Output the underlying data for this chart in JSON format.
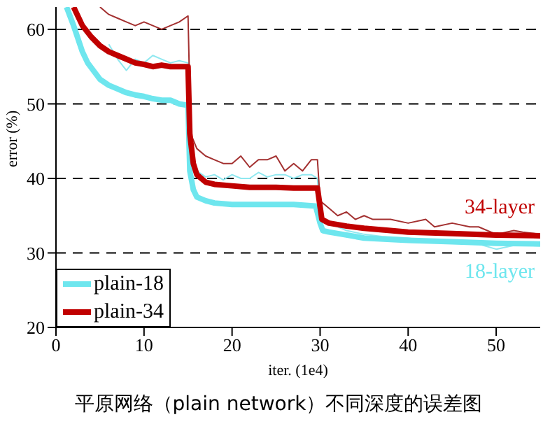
{
  "chart_data": {
    "type": "line",
    "title": "平原网络（plain network）不同深度的误差图",
    "xlabel": "iter. (1e4)",
    "ylabel": "error (%)",
    "xlim": [
      0,
      55
    ],
    "ylim": [
      20,
      63
    ],
    "xticks": [
      0,
      10,
      20,
      30,
      40,
      50
    ],
    "yticks": [
      20,
      30,
      40,
      50,
      60
    ],
    "grid": "y",
    "legend": "bottom left",
    "line_style": "solid",
    "marker": "none",
    "annotations": [
      "34-layer",
      "18-layer"
    ],
    "series": [
      {
        "color": "#8fe8f0",
        "x": [
          6,
          7,
          8,
          9,
          10,
          11,
          12,
          13,
          14,
          15,
          15.3,
          16,
          17,
          18,
          19,
          20,
          21,
          22,
          23,
          24,
          25,
          26,
          27,
          28,
          29,
          29.7,
          30,
          31,
          33,
          35,
          37,
          40,
          42,
          45,
          48,
          50,
          52,
          55
        ],
        "values": [
          58,
          56,
          54.5,
          56,
          55.5,
          56.5,
          56,
          55.5,
          55.8,
          55.5,
          42.5,
          41,
          40.2,
          40.5,
          39.8,
          40.5,
          40,
          40,
          40.8,
          40.2,
          40.5,
          40.5,
          40,
          40.5,
          40.5,
          40,
          35,
          34,
          33,
          32.5,
          32.2,
          32,
          31.6,
          31.5,
          31.2,
          30.5,
          31,
          31
        ]
      },
      {
        "color": "#a33030",
        "x": [
          5,
          6,
          7,
          8,
          9,
          10,
          11,
          12,
          13,
          14,
          15,
          15.3,
          16,
          17,
          18,
          19,
          20,
          21,
          22,
          23,
          24,
          25,
          26,
          27,
          28,
          29,
          29.7,
          30,
          31,
          32,
          33,
          34,
          35,
          36,
          38,
          40,
          42,
          43,
          45,
          47,
          48,
          50,
          52,
          53,
          55
        ],
        "values": [
          63,
          62,
          61.5,
          61,
          60.5,
          61,
          60.5,
          60,
          60.5,
          61,
          61.8,
          46,
          44,
          43,
          42.5,
          42,
          42,
          43,
          41.5,
          42.5,
          42.5,
          43,
          41,
          42,
          41,
          42.5,
          42.5,
          37,
          36,
          35,
          35.5,
          34.5,
          35,
          34.5,
          34.5,
          34,
          34.5,
          33.5,
          34,
          33.5,
          33.5,
          32.5,
          33,
          32.8,
          32.5
        ]
      },
      {
        "name": "plain-18",
        "color": "#6ee6ee",
        "x": [
          1.2,
          2,
          3,
          3.6,
          5,
          6,
          7,
          8,
          9,
          10,
          11,
          12,
          13,
          14,
          15,
          15.2,
          15.6,
          16,
          17,
          18,
          20,
          22,
          25,
          27,
          29.5,
          30,
          30.3,
          31,
          33,
          35,
          38,
          40,
          45,
          50,
          55
        ],
        "values": [
          63,
          60.5,
          57,
          55.5,
          53.3,
          52.5,
          52,
          51.5,
          51.2,
          51,
          50.7,
          50.5,
          50.5,
          50,
          49.8,
          41,
          38.5,
          37.5,
          37,
          36.7,
          36.5,
          36.5,
          36.5,
          36.5,
          36.3,
          34,
          33,
          32.8,
          32.4,
          32,
          31.8,
          31.7,
          31.5,
          31.3,
          31.2
        ]
      },
      {
        "name": "plain-34",
        "color": "#c00000",
        "x": [
          2,
          3,
          4,
          5,
          6,
          7,
          8,
          9,
          10,
          11,
          12,
          13,
          14,
          15,
          15.2,
          15.6,
          16,
          17,
          18,
          20,
          22,
          25,
          27,
          29.7,
          30.2,
          31,
          33,
          35,
          38,
          40,
          45,
          50,
          55
        ],
        "values": [
          63,
          60.5,
          59,
          57.8,
          57,
          56.5,
          56,
          55.5,
          55.3,
          55,
          55.2,
          55,
          55,
          55,
          46,
          42,
          40.5,
          39.5,
          39.2,
          39,
          38.8,
          38.8,
          38.7,
          38.7,
          34.5,
          34,
          33.6,
          33.3,
          33,
          32.8,
          32.6,
          32.4,
          32.3
        ]
      }
    ]
  }
}
